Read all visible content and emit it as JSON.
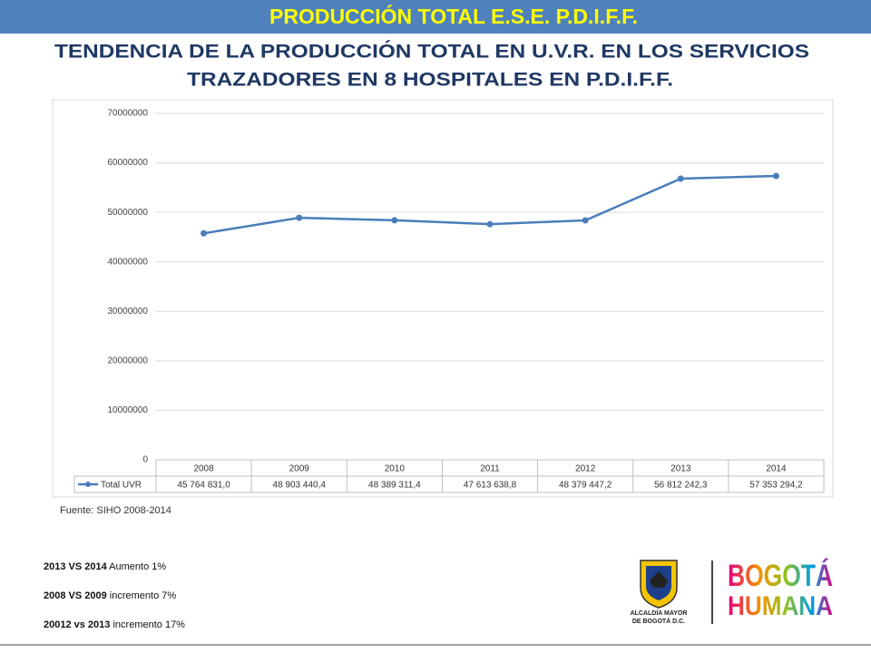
{
  "header": {
    "title": "PRODUCCIÓN TOTAL E.S.E.  P.D.I.F.F."
  },
  "subtitle": [
    "TENDENCIA  DE LA PRODUCCIÓN TOTAL EN U.V.R. EN LOS SERVICIOS",
    "TRAZADORES EN 8 HOSPITALES EN P.D.I.F.F."
  ],
  "chart_data": {
    "type": "line",
    "categories": [
      "2008",
      "2009",
      "2010",
      "2011",
      "2012",
      "2013",
      "2014"
    ],
    "series": [
      {
        "name": "Total UVR",
        "color": "#4a7ebb",
        "values": [
          45764831.0,
          48903440.4,
          48389311.4,
          47613638.8,
          48379447.2,
          56812242.3,
          57353294.2
        ],
        "value_labels": [
          "45 764 831,0",
          "48 903 440,4",
          "48 389 311,4",
          "47 613 638,8",
          "48 379 447,2",
          "56 812 242,3",
          "57 353 294,2"
        ]
      }
    ],
    "ylim": [
      0,
      70000000
    ],
    "yticks": [
      0,
      10000000,
      20000000,
      30000000,
      40000000,
      50000000,
      60000000,
      70000000
    ],
    "grid": true
  },
  "source": "Fuente: SIHO 2008-2014",
  "notes": [
    {
      "bold": "2013 VS 2014",
      "text": "  Aumento 1%"
    },
    {
      "bold": "2008 VS 2009",
      "text": " incremento 7%"
    },
    {
      "bold": "20012 vs 2013",
      "text": " incremento  17%"
    }
  ],
  "logo": {
    "alcaldia": [
      "ALCALDÍA MAYOR",
      "DE BOGOTÁ D.C."
    ],
    "brand": [
      "BOGOTÁ",
      "HUMANA"
    ]
  }
}
